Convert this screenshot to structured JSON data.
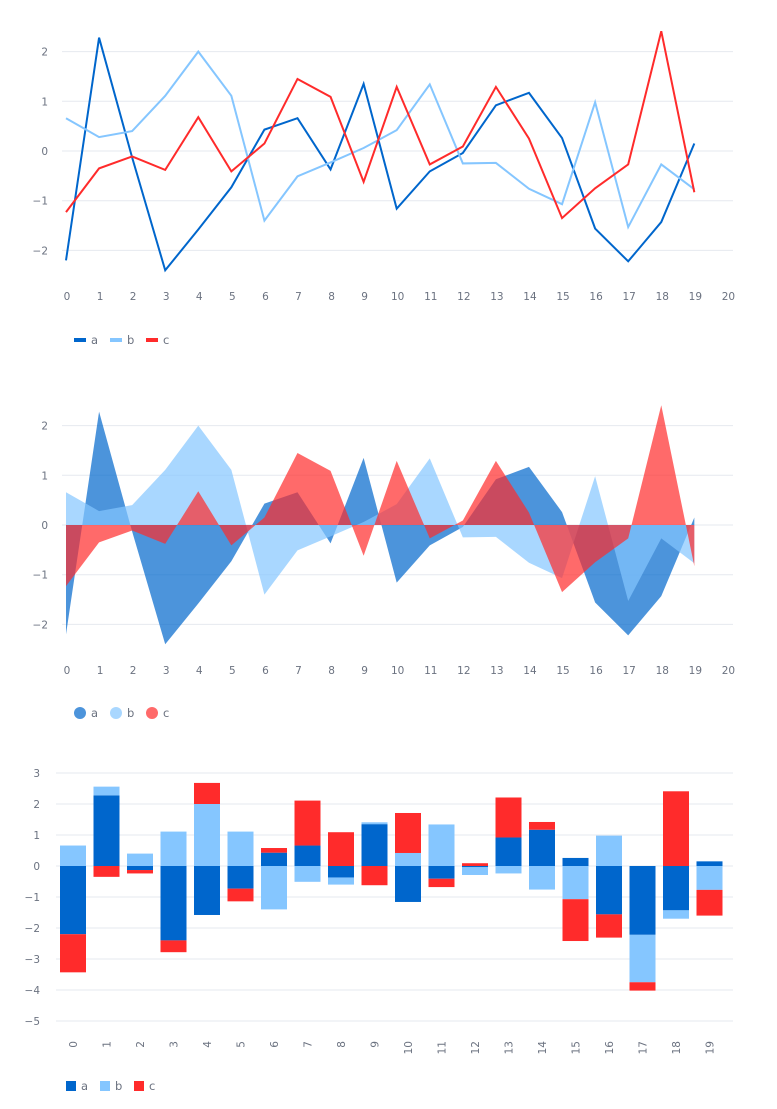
{
  "colors": {
    "a": "#0066CC",
    "b": "#85C6FF",
    "c": "#FF2B2B",
    "grid": "#E6E9EF",
    "text": "#6b7280"
  },
  "chart_data": [
    {
      "type": "line",
      "x": [
        0,
        1,
        2,
        3,
        4,
        5,
        6,
        7,
        8,
        9,
        10,
        11,
        12,
        13,
        14,
        15,
        16,
        17,
        18,
        19
      ],
      "xticks": [
        "0",
        "1",
        "2",
        "3",
        "4",
        "5",
        "6",
        "7",
        "8",
        "9",
        "10",
        "11",
        "12",
        "13",
        "14",
        "15",
        "16",
        "17",
        "18",
        "19",
        "20"
      ],
      "yticks": [
        "−2",
        "−1",
        "0",
        "1",
        "2"
      ],
      "ylim": [
        -2.6,
        2.6
      ],
      "series": [
        {
          "name": "a",
          "values": [
            -2.2,
            2.28,
            -0.13,
            -2.4,
            -1.58,
            -0.73,
            0.43,
            0.66,
            -0.37,
            1.35,
            -1.16,
            -0.41,
            -0.04,
            0.92,
            1.17,
            0.26,
            -1.56,
            -2.22,
            -1.43,
            0.15
          ]
        },
        {
          "name": "b",
          "values": [
            0.66,
            0.28,
            0.4,
            1.11,
            2.0,
            1.11,
            -1.4,
            -0.51,
            -0.23,
            0.06,
            0.42,
            1.34,
            -0.25,
            -0.24,
            -0.76,
            -1.07,
            0.98,
            -1.53,
            -0.27,
            -0.77
          ]
        },
        {
          "name": "c",
          "values": [
            -1.23,
            -0.35,
            -0.11,
            -0.38,
            0.68,
            -0.41,
            0.15,
            1.45,
            1.09,
            -0.62,
            1.29,
            -0.27,
            0.09,
            1.29,
            0.25,
            -1.35,
            -0.75,
            -0.27,
            2.41,
            -0.83
          ]
        }
      ],
      "legend": [
        "a",
        "b",
        "c"
      ]
    },
    {
      "type": "area",
      "x": [
        0,
        1,
        2,
        3,
        4,
        5,
        6,
        7,
        8,
        9,
        10,
        11,
        12,
        13,
        14,
        15,
        16,
        17,
        18,
        19
      ],
      "xticks": [
        "0",
        "1",
        "2",
        "3",
        "4",
        "5",
        "6",
        "7",
        "8",
        "9",
        "10",
        "11",
        "12",
        "13",
        "14",
        "15",
        "16",
        "17",
        "18",
        "19",
        "20"
      ],
      "yticks": [
        "−2",
        "−1",
        "0",
        "1",
        "2"
      ],
      "ylim": [
        -2.6,
        2.6
      ],
      "series": [
        {
          "name": "a",
          "values": [
            -2.2,
            2.28,
            -0.13,
            -2.4,
            -1.58,
            -0.73,
            0.43,
            0.66,
            -0.37,
            1.35,
            -1.16,
            -0.41,
            -0.04,
            0.92,
            1.17,
            0.26,
            -1.56,
            -2.22,
            -1.43,
            0.15
          ]
        },
        {
          "name": "b",
          "values": [
            0.66,
            0.28,
            0.4,
            1.11,
            2.0,
            1.11,
            -1.4,
            -0.51,
            -0.23,
            0.06,
            0.42,
            1.34,
            -0.25,
            -0.24,
            -0.76,
            -1.07,
            0.98,
            -1.53,
            -0.27,
            -0.77
          ]
        },
        {
          "name": "c",
          "values": [
            -1.23,
            -0.35,
            -0.11,
            -0.38,
            0.68,
            -0.41,
            0.15,
            1.45,
            1.09,
            -0.62,
            1.29,
            -0.27,
            0.09,
            1.29,
            0.25,
            -1.35,
            -0.75,
            -0.27,
            2.41,
            -0.83
          ]
        }
      ],
      "legend": [
        "a",
        "b",
        "c"
      ]
    },
    {
      "type": "bar",
      "stacked": true,
      "categories": [
        "0",
        "1",
        "2",
        "3",
        "4",
        "5",
        "6",
        "7",
        "8",
        "9",
        "10",
        "11",
        "12",
        "13",
        "14",
        "15",
        "16",
        "17",
        "18",
        "19"
      ],
      "yticks": [
        "−5",
        "−4",
        "−3",
        "−2",
        "−1",
        "0",
        "1",
        "2",
        "3"
      ],
      "ylim": [
        -5.2,
        3.2
      ],
      "series": [
        {
          "name": "a",
          "values": [
            -2.2,
            2.28,
            -0.13,
            -2.4,
            -1.58,
            -0.73,
            0.43,
            0.66,
            -0.37,
            1.35,
            -1.16,
            -0.41,
            -0.04,
            0.92,
            1.17,
            0.26,
            -1.56,
            -2.22,
            -1.43,
            0.15
          ]
        },
        {
          "name": "b",
          "values": [
            0.66,
            0.28,
            0.4,
            1.11,
            2.0,
            1.11,
            -1.4,
            -0.51,
            -0.23,
            0.06,
            0.42,
            1.34,
            -0.25,
            -0.24,
            -0.76,
            -1.07,
            0.98,
            -1.53,
            -0.27,
            -0.77
          ]
        },
        {
          "name": "c",
          "values": [
            -1.23,
            -0.35,
            -0.11,
            -0.38,
            0.68,
            -0.41,
            0.15,
            1.45,
            1.09,
            -0.62,
            1.29,
            -0.27,
            0.09,
            1.29,
            0.25,
            -1.35,
            -0.75,
            -0.27,
            2.41,
            -0.83
          ]
        }
      ],
      "legend": [
        "a",
        "b",
        "c"
      ]
    }
  ]
}
